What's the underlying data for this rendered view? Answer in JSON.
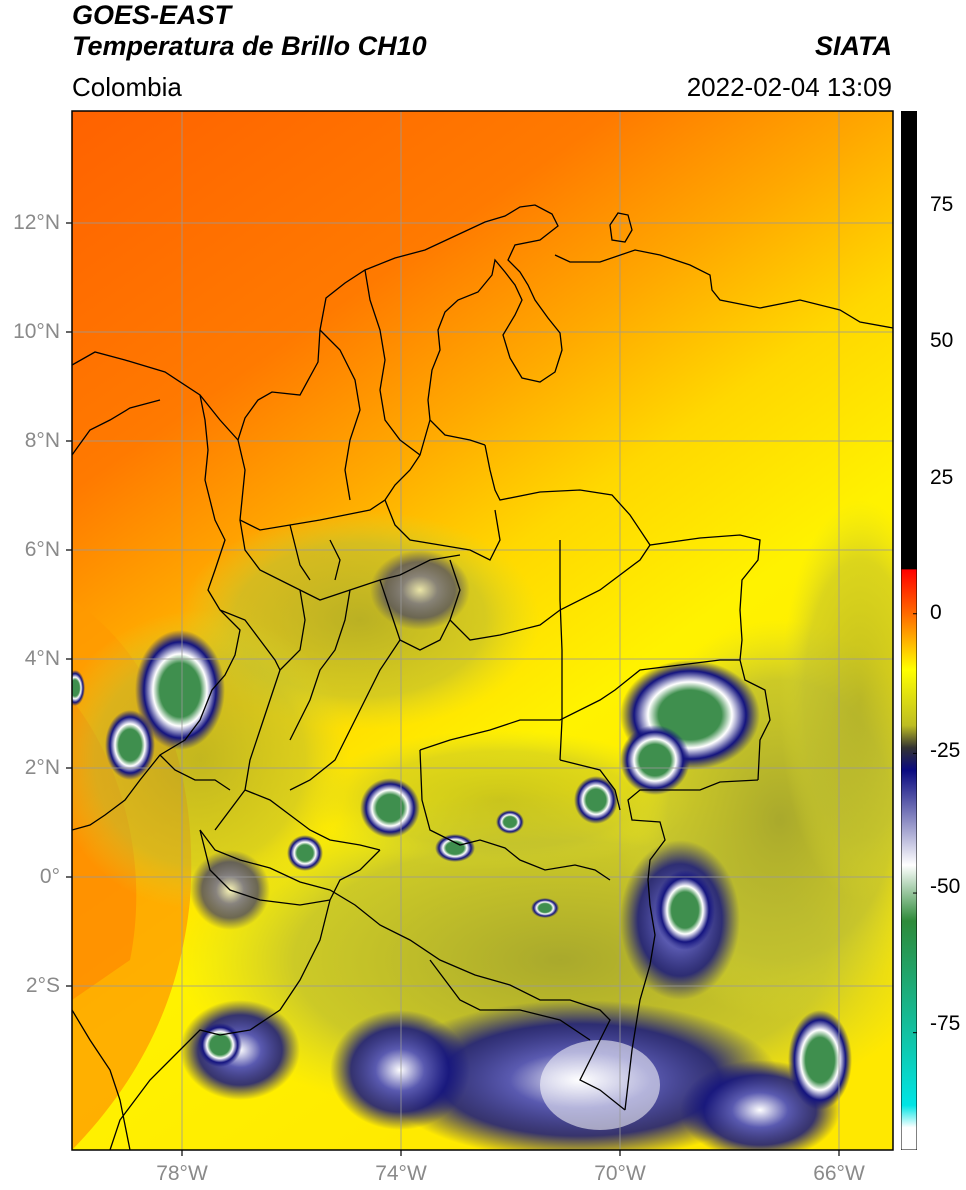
{
  "header": {
    "line1": "GOES-EAST",
    "line2": "Temperatura de Brillo CH10",
    "brand": "SIATA",
    "region": "Colombia",
    "timestamp": "2022-02-04 13:09"
  },
  "axes": {
    "lat_labels": [
      "12°N",
      "10°N",
      "8°N",
      "6°N",
      "4°N",
      "2°N",
      "0°",
      "2°S"
    ],
    "lat_values": [
      12,
      10,
      8,
      6,
      4,
      2,
      0,
      -2
    ],
    "lon_labels": [
      "78°W",
      "74°W",
      "70°W",
      "66°W"
    ],
    "lon_values": [
      -78,
      -74,
      -70,
      -66
    ],
    "lon_range": [
      -80,
      -65
    ],
    "lat_range": [
      -4.9,
      14.1
    ],
    "grid": true
  },
  "colorbar": {
    "ticks": [
      "75",
      "50",
      "25",
      "0",
      "-25",
      "-50",
      "-75"
    ],
    "tick_values": [
      75,
      50,
      25,
      0,
      -25,
      -50,
      -75
    ],
    "range": [
      -96,
      90
    ],
    "stops": [
      {
        "value": 90,
        "color": "#000000"
      },
      {
        "value": 8,
        "color": "#000000"
      },
      {
        "value": 7.9,
        "color": "#ff0000"
      },
      {
        "value": 0,
        "color": "#ff6a00"
      },
      {
        "value": -10,
        "color": "#ffff00"
      },
      {
        "value": -20,
        "color": "#bdbd22"
      },
      {
        "value": -24,
        "color": "#333333"
      },
      {
        "value": -28,
        "color": "#0a0a80"
      },
      {
        "value": -45,
        "color": "#ffffff"
      },
      {
        "value": -55,
        "color": "#2e8b3a"
      },
      {
        "value": -88,
        "color": "#00e5e5"
      },
      {
        "value": -92,
        "color": "#ffffff"
      }
    ]
  },
  "colors": {
    "ocean_warm": "#ff6a00",
    "land_warm": "#ffe600",
    "cloud_mid": "#b8b828",
    "cloud_cold": "#14147f",
    "cloud_top": "#3f8f4e",
    "borders": "#000000"
  }
}
